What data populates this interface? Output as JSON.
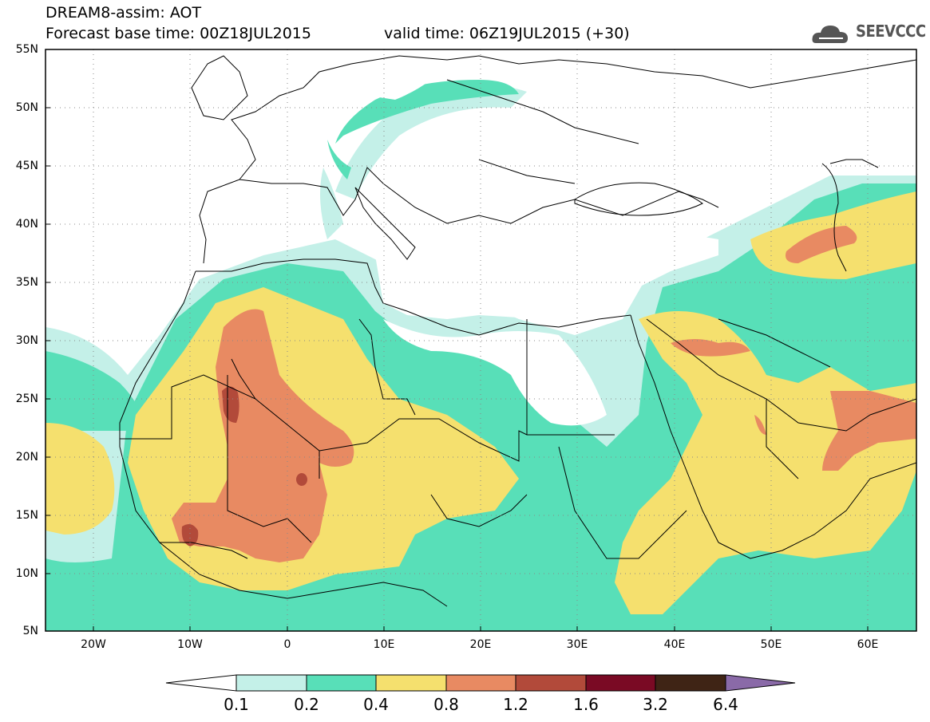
{
  "header": {
    "title_line1": "DREAM8-assim: AOT",
    "title_line2": "Forecast base time: 00Z18JUL2015",
    "valid_time": "valid time: 06Z19JUL2015 (+30)",
    "logo_text": "SEEVCCC",
    "logo_icon": "cloud-icon"
  },
  "map": {
    "projection": "lat-lon",
    "lon_range": [
      -25,
      65
    ],
    "lat_range": [
      5,
      55
    ],
    "grid": true,
    "lat_labels": [
      "55N",
      "50N",
      "45N",
      "40N",
      "35N",
      "30N",
      "25N",
      "20N",
      "15N",
      "10N",
      "5N"
    ],
    "lon_labels": [
      "20W",
      "10W",
      "0",
      "10E",
      "20E",
      "30E",
      "40E",
      "50E",
      "60E"
    ]
  },
  "colorbar": {
    "labels": [
      "0.1",
      "0.2",
      "0.4",
      "0.8",
      "1.2",
      "1.6",
      "3.2",
      "6.4"
    ],
    "colors": [
      "#ffffff",
      "#c4f0e8",
      "#58dfb8",
      "#f5e06e",
      "#e88a62",
      "#b24a3a",
      "#7a0a24",
      "#3f2415",
      "#8a6aa8"
    ]
  }
}
